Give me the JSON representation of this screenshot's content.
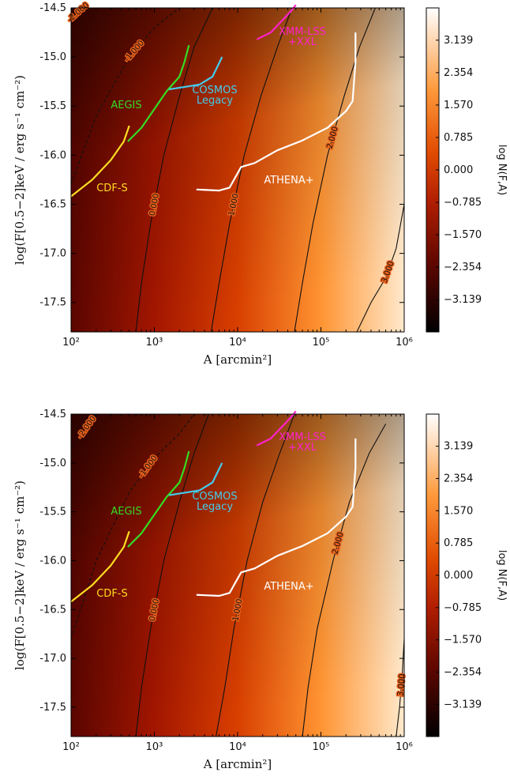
{
  "chart_data": [
    {
      "type": "heatmap",
      "xlabel": "A [arcmin²]",
      "ylabel": "log(F[0.5−2]keV / erg s⁻¹ cm⁻²)",
      "xscale": "log",
      "xlim": [
        100,
        1000000
      ],
      "ylim": [
        -17.8,
        -14.5
      ],
      "x_ticks": [
        "10²",
        "10³",
        "10⁴",
        "10⁵",
        "10⁶"
      ],
      "y_ticks": [
        "-14.5",
        "-15.0",
        "-15.5",
        "-16.0",
        "-16.5",
        "-17.0",
        "-17.5"
      ],
      "colorbar": {
        "label": "log N(F,A)",
        "ticks": [
          "3.139",
          "2.354",
          "1.570",
          "0.785",
          "0.000",
          "−0.785",
          "−1.570",
          "−2.354",
          "−3.139"
        ],
        "range": [
          -3.92,
          3.92
        ]
      },
      "contours": [
        {
          "level": -2.0,
          "label": "-2.000",
          "style": "dashed",
          "points": [
            [
              100,
              -14.62
            ],
            [
              120,
              -14.55
            ],
            [
              140,
              -14.5
            ]
          ]
        },
        {
          "level": -1.0,
          "label": "-1.000",
          "style": "dashed",
          "points": [
            [
              100,
              -16.3
            ],
            [
              200,
              -15.6
            ],
            [
              500,
              -15.0
            ],
            [
              1000,
              -14.7
            ],
            [
              2000,
              -14.5
            ]
          ]
        },
        {
          "level": 0.0,
          "label": "0.000",
          "style": "solid",
          "points": [
            [
              600,
              -17.8
            ],
            [
              700,
              -17.3
            ],
            [
              900,
              -16.7
            ],
            [
              1300,
              -16.0
            ],
            [
              2000,
              -15.4
            ],
            [
              3000,
              -14.9
            ],
            [
              5000,
              -14.5
            ]
          ]
        },
        {
          "level": 1.0,
          "label": "1.000",
          "style": "solid",
          "points": [
            [
              4800,
              -17.8
            ],
            [
              6000,
              -17.3
            ],
            [
              8000,
              -16.7
            ],
            [
              12000,
              -16.0
            ],
            [
              19000,
              -15.4
            ],
            [
              30000,
              -14.9
            ],
            [
              45000,
              -14.5
            ]
          ]
        },
        {
          "level": 2.0,
          "label": "2.000",
          "style": "solid",
          "points": [
            [
              48000,
              -17.8
            ],
            [
              60000,
              -17.3
            ],
            [
              80000,
              -16.7
            ],
            [
              120000,
              -16.0
            ],
            [
              190000,
              -15.4
            ],
            [
              290000,
              -14.9
            ],
            [
              450000,
              -14.5
            ]
          ]
        },
        {
          "level": 3.0,
          "label": "3.000",
          "style": "solid",
          "points": [
            [
              270000,
              -17.8
            ],
            [
              400000,
              -17.5
            ],
            [
              600000,
              -17.25
            ],
            [
              800000,
              -16.95
            ],
            [
              1000000,
              -16.5
            ]
          ]
        }
      ],
      "surveys": [
        {
          "name": "CDF-S",
          "color": "#ffdd22",
          "points": [
            [
              100,
              -16.42
            ],
            [
              180,
              -16.25
            ],
            [
              300,
              -16.05
            ],
            [
              430,
              -15.86
            ],
            [
              500,
              -15.7
            ]
          ]
        },
        {
          "name": "AEGIS",
          "color": "#33dd22",
          "points": [
            [
              480,
              -15.86
            ],
            [
              700,
              -15.72
            ],
            [
              1000,
              -15.53
            ],
            [
              1400,
              -15.35
            ],
            [
              2000,
              -15.2
            ],
            [
              2300,
              -15.05
            ],
            [
              2600,
              -14.88
            ]
          ]
        },
        {
          "name": "COSMOS Legacy",
          "color": "#44ccee",
          "points": [
            [
              1500,
              -15.33
            ],
            [
              2500,
              -15.3
            ],
            [
              3500,
              -15.28
            ],
            [
              5000,
              -15.2
            ],
            [
              6500,
              -15.0
            ]
          ]
        },
        {
          "name": "XMM-LSS +XXL",
          "color": "#ff22cc",
          "points": [
            [
              17000,
              -14.82
            ],
            [
              25000,
              -14.75
            ],
            [
              35000,
              -14.62
            ],
            [
              45000,
              -14.52
            ],
            [
              50000,
              -14.47
            ]
          ]
        },
        {
          "name": "ATHENA+",
          "color": "#ffffff",
          "points": [
            [
              3200,
              -16.35
            ],
            [
              6000,
              -16.36
            ],
            [
              8000,
              -16.33
            ],
            [
              11000,
              -16.12
            ],
            [
              16000,
              -16.08
            ],
            [
              30000,
              -15.95
            ],
            [
              60000,
              -15.85
            ],
            [
              120000,
              -15.72
            ],
            [
              200000,
              -15.55
            ],
            [
              240000,
              -15.45
            ],
            [
              260000,
              -15.05
            ],
            [
              260000,
              -14.75
            ]
          ]
        }
      ]
    },
    {
      "type": "heatmap",
      "xlabel": "A [arcmin²]",
      "ylabel": "log(F[0.5−2]keV / erg s⁻¹ cm⁻²)",
      "xscale": "log",
      "xlim": [
        100,
        1000000
      ],
      "ylim": [
        -17.8,
        -14.5
      ],
      "x_ticks": [
        "10²",
        "10³",
        "10⁴",
        "10⁵",
        "10⁶"
      ],
      "y_ticks": [
        "-14.5",
        "-15.0",
        "-15.5",
        "-16.0",
        "-16.5",
        "-17.0",
        "-17.5"
      ],
      "colorbar": {
        "label": "log N(F,A)",
        "ticks": [
          "3.139",
          "2.354",
          "1.570",
          "0.785",
          "0.000",
          "−0.785",
          "−1.570",
          "−2.354",
          "−3.139"
        ],
        "range": [
          -3.92,
          3.92
        ]
      },
      "contours": [
        {
          "level": -2.0,
          "label": "-2.000",
          "style": "dashed",
          "points": [
            [
              100,
              -14.85
            ],
            [
              150,
              -14.65
            ],
            [
              200,
              -14.5
            ]
          ]
        },
        {
          "level": -1.0,
          "label": "-1.000",
          "style": "dashed",
          "points": [
            [
              100,
              -16.8
            ],
            [
              200,
              -16.0
            ],
            [
              500,
              -15.3
            ],
            [
              1000,
              -14.95
            ],
            [
              2000,
              -14.7
            ],
            [
              3000,
              -14.5
            ]
          ]
        },
        {
          "level": 0.0,
          "label": "0.000",
          "style": "solid",
          "points": [
            [
              600,
              -17.8
            ],
            [
              700,
              -17.3
            ],
            [
              900,
              -16.7
            ],
            [
              1300,
              -16.0
            ],
            [
              2000,
              -15.4
            ],
            [
              3000,
              -14.9
            ],
            [
              4500,
              -14.5
            ]
          ]
        },
        {
          "level": 1.0,
          "label": "1.000",
          "style": "solid",
          "points": [
            [
              5500,
              -17.8
            ],
            [
              7000,
              -17.3
            ],
            [
              9000,
              -16.7
            ],
            [
              13000,
              -16.0
            ],
            [
              20000,
              -15.4
            ],
            [
              32000,
              -14.9
            ],
            [
              48000,
              -14.5
            ]
          ]
        },
        {
          "level": 2.0,
          "label": "2.000",
          "style": "solid",
          "points": [
            [
              60000,
              -17.8
            ],
            [
              70000,
              -17.3
            ],
            [
              90000,
              -16.7
            ],
            [
              140000,
              -16.0
            ],
            [
              220000,
              -15.4
            ],
            [
              380000,
              -14.9
            ],
            [
              600000,
              -14.6
            ]
          ]
        },
        {
          "level": 3.0,
          "label": "3.000",
          "style": "solid",
          "points": [
            [
              800000,
              -17.8
            ],
            [
              880000,
              -17.5
            ],
            [
              950000,
              -17.15
            ],
            [
              1000000,
              -16.8
            ]
          ]
        }
      ],
      "surveys": [
        {
          "name": "CDF-S",
          "color": "#ffdd22",
          "points": [
            [
              100,
              -16.42
            ],
            [
              180,
              -16.25
            ],
            [
              300,
              -16.05
            ],
            [
              430,
              -15.86
            ],
            [
              500,
              -15.7
            ]
          ]
        },
        {
          "name": "AEGIS",
          "color": "#33dd22",
          "points": [
            [
              480,
              -15.86
            ],
            [
              700,
              -15.72
            ],
            [
              1000,
              -15.53
            ],
            [
              1400,
              -15.35
            ],
            [
              2000,
              -15.2
            ],
            [
              2300,
              -15.05
            ],
            [
              2600,
              -14.88
            ]
          ]
        },
        {
          "name": "COSMOS Legacy",
          "color": "#44ccee",
          "points": [
            [
              1500,
              -15.33
            ],
            [
              2500,
              -15.3
            ],
            [
              3500,
              -15.28
            ],
            [
              5000,
              -15.2
            ],
            [
              6500,
              -15.0
            ]
          ]
        },
        {
          "name": "XMM-LSS +XXL",
          "color": "#ff22cc",
          "points": [
            [
              17000,
              -14.82
            ],
            [
              25000,
              -14.75
            ],
            [
              35000,
              -14.62
            ],
            [
              45000,
              -14.52
            ],
            [
              50000,
              -14.47
            ]
          ]
        },
        {
          "name": "ATHENA+",
          "color": "#ffffff",
          "points": [
            [
              3200,
              -16.35
            ],
            [
              6000,
              -16.36
            ],
            [
              8000,
              -16.33
            ],
            [
              11000,
              -16.12
            ],
            [
              16000,
              -16.08
            ],
            [
              30000,
              -15.95
            ],
            [
              60000,
              -15.85
            ],
            [
              120000,
              -15.72
            ],
            [
              200000,
              -15.55
            ],
            [
              240000,
              -15.45
            ],
            [
              260000,
              -15.05
            ],
            [
              260000,
              -14.75
            ]
          ]
        }
      ]
    }
  ]
}
